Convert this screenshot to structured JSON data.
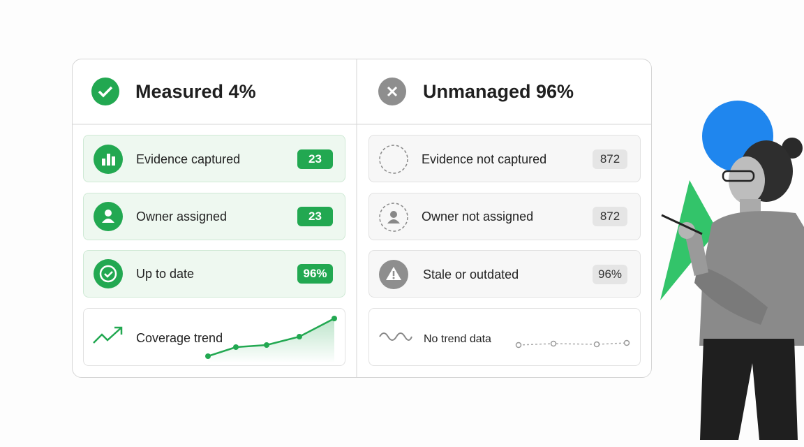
{
  "left": {
    "title": "Measured 4%",
    "rows": [
      {
        "label": "Evidence captured",
        "badge": "23"
      },
      {
        "label": "Owner assigned",
        "badge": "23"
      },
      {
        "label": "Up to date",
        "badge": "96%"
      }
    ],
    "trend": "Coverage trend"
  },
  "right": {
    "title": "Unmanaged 96%",
    "rows": [
      {
        "label": "Evidence not captured",
        "badge": "872"
      },
      {
        "label": "Owner not assigned",
        "badge": "872"
      },
      {
        "label": "Stale or outdated",
        "badge": "96%"
      }
    ],
    "trend": "No trend data"
  }
}
